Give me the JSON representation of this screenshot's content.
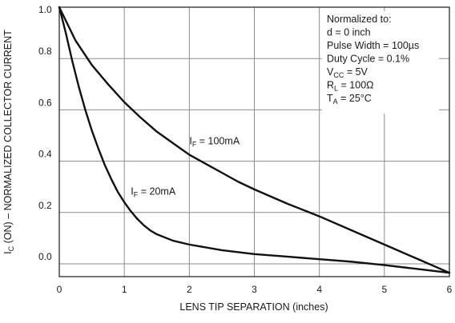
{
  "chart_data": {
    "type": "line",
    "title": "",
    "xlabel": "LENS TIP SEPARATION (inches)",
    "ylabel": {
      "prefix": "I",
      "sub": "C",
      "suffix": " (ON) – NORMALIZED COLLECTOR CURRENT"
    },
    "xlim": [
      0,
      6
    ],
    "ylim": [
      -0.05,
      1.0
    ],
    "x_ticks": [
      "0",
      "1",
      "2",
      "3",
      "4",
      "5",
      "6"
    ],
    "y_ticks": [
      "0.0",
      "0.2",
      "0.4",
      "0.6",
      "0.8",
      "1.0"
    ],
    "grid": true,
    "series": [
      {
        "name": "I_F = 20mA",
        "label": {
          "prefix": "I",
          "sub": "F",
          "suffix": " = 20mA"
        },
        "x": [
          0,
          0.1,
          0.2,
          0.3,
          0.4,
          0.5,
          0.6,
          0.7,
          0.8,
          0.9,
          1.0,
          1.1,
          1.2,
          1.3,
          1.4,
          1.5,
          1.75,
          2.0,
          2.5,
          3.0,
          3.5,
          4.0,
          4.5,
          5.0,
          5.5,
          6.0
        ],
        "values": [
          1.0,
          0.9,
          0.79,
          0.69,
          0.6,
          0.52,
          0.45,
          0.385,
          0.33,
          0.28,
          0.24,
          0.205,
          0.175,
          0.15,
          0.13,
          0.115,
          0.09,
          0.075,
          0.053,
          0.038,
          0.028,
          0.018,
          0.008,
          -0.005,
          -0.02,
          -0.035
        ]
      },
      {
        "name": "I_F = 100mA",
        "label": {
          "prefix": "I",
          "sub": "F",
          "suffix": " = 100mA"
        },
        "x": [
          0,
          0.25,
          0.5,
          0.75,
          1.0,
          1.25,
          1.5,
          1.75,
          2.0,
          2.25,
          2.5,
          2.75,
          3.0,
          3.5,
          4.0,
          4.5,
          5.0,
          5.5,
          6.0
        ],
        "values": [
          1.0,
          0.87,
          0.775,
          0.7,
          0.63,
          0.57,
          0.515,
          0.47,
          0.425,
          0.39,
          0.355,
          0.32,
          0.29,
          0.235,
          0.185,
          0.13,
          0.075,
          0.02,
          -0.035
        ]
      }
    ],
    "annotation": {
      "lines": [
        {
          "prefix": "Normalized to:",
          "sub": "",
          "suffix": ""
        },
        {
          "prefix": "d = 0 inch",
          "sub": "",
          "suffix": ""
        },
        {
          "prefix": "Pulse Width = 100µs",
          "sub": "",
          "suffix": ""
        },
        {
          "prefix": "Duty Cycle = 0.1%",
          "sub": "",
          "suffix": ""
        },
        {
          "prefix": "V",
          "sub": "CC",
          "suffix": " = 5V"
        },
        {
          "prefix": "R",
          "sub": "L",
          "suffix": " = 100Ω"
        },
        {
          "prefix": "T",
          "sub": "A",
          "suffix": " = 25°C"
        }
      ]
    }
  }
}
